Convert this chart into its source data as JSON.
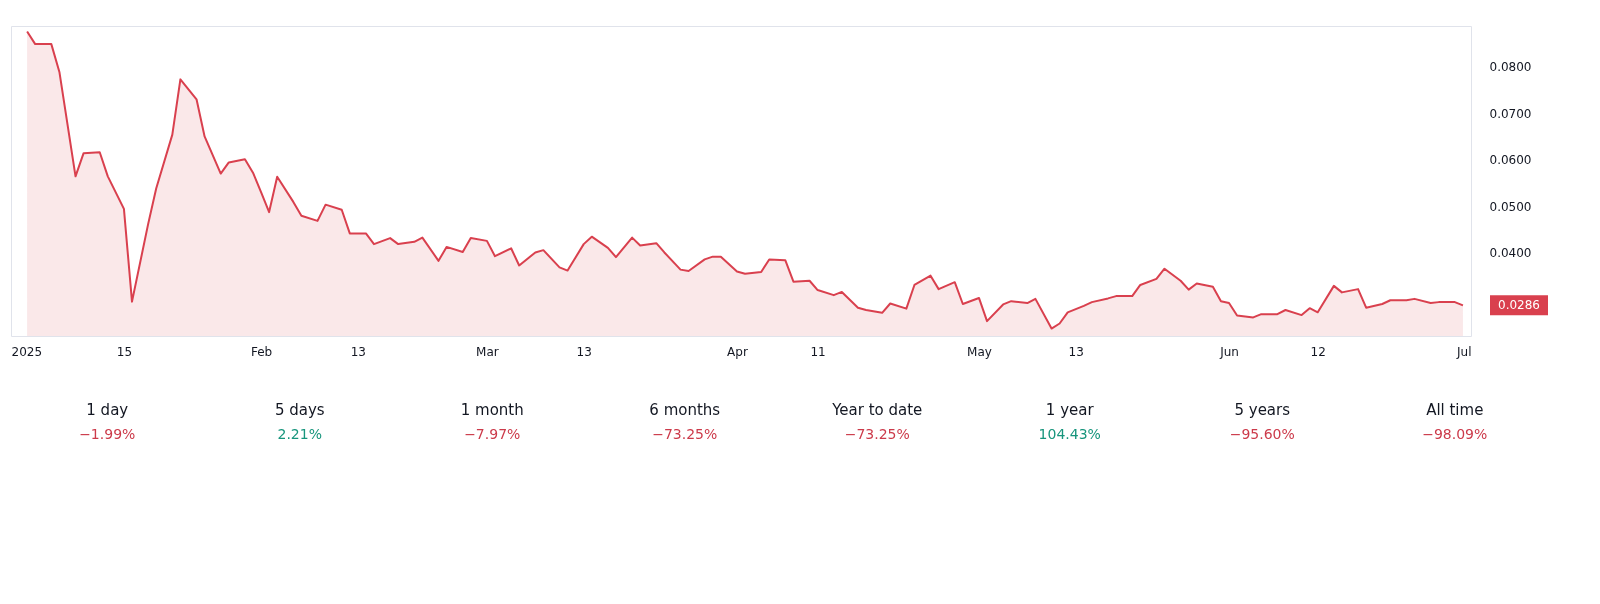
{
  "chart_data": [
    {
      "type": "area",
      "x": [
        "2025-01-03",
        "2025-01-04",
        "2025-01-06",
        "2025-01-07",
        "2025-01-09",
        "2025-01-10",
        "2025-01-12",
        "2025-01-13",
        "2025-01-15",
        "2025-01-16",
        "2025-01-18",
        "2025-01-19",
        "2025-01-21",
        "2025-01-22",
        "2025-01-24",
        "2025-01-25",
        "2025-01-27",
        "2025-01-28",
        "2025-01-30",
        "2025-01-31",
        "2025-02-01",
        "2025-02-02",
        "2025-02-03",
        "2025-02-05",
        "2025-02-06",
        "2025-02-08",
        "2025-02-09",
        "2025-02-11",
        "2025-02-12",
        "2025-02-14",
        "2025-02-15",
        "2025-02-17",
        "2025-02-18",
        "2025-02-20",
        "2025-02-21",
        "2025-02-23",
        "2025-02-24",
        "2025-02-26",
        "2025-02-27",
        "2025-03-01",
        "2025-03-02",
        "2025-03-04",
        "2025-03-05",
        "2025-03-07",
        "2025-03-08",
        "2025-03-10",
        "2025-03-11",
        "2025-03-13",
        "2025-03-14",
        "2025-03-16",
        "2025-03-17",
        "2025-03-19",
        "2025-03-20",
        "2025-03-22",
        "2025-03-23",
        "2025-03-25",
        "2025-03-26",
        "2025-03-28",
        "2025-03-29",
        "2025-03-30",
        "2025-04-01",
        "2025-04-02",
        "2025-04-04",
        "2025-04-05",
        "2025-04-07",
        "2025-04-08",
        "2025-04-10",
        "2025-04-11",
        "2025-04-13",
        "2025-04-14",
        "2025-04-16",
        "2025-04-17",
        "2025-04-19",
        "2025-04-20",
        "2025-04-22",
        "2025-04-23",
        "2025-04-25",
        "2025-04-26",
        "2025-04-28",
        "2025-04-29",
        "2025-05-01",
        "2025-05-02",
        "2025-05-04",
        "2025-05-05",
        "2025-05-07",
        "2025-05-08",
        "2025-05-10",
        "2025-05-11",
        "2025-05-12",
        "2025-05-14",
        "2025-05-15",
        "2025-05-17",
        "2025-05-18",
        "2025-05-20",
        "2025-05-21",
        "2025-05-23",
        "2025-05-24",
        "2025-05-26",
        "2025-05-27",
        "2025-05-28",
        "2025-05-30",
        "2025-05-31",
        "2025-06-01",
        "2025-06-02",
        "2025-06-04",
        "2025-06-05",
        "2025-06-07",
        "2025-06-08",
        "2025-06-10",
        "2025-06-11",
        "2025-06-12",
        "2025-06-14",
        "2025-06-15",
        "2025-06-17",
        "2025-06-18",
        "2025-06-20",
        "2025-06-21",
        "2025-06-23",
        "2025-06-24",
        "2025-06-26",
        "2025-06-27",
        "2025-06-29",
        "2025-06-30"
      ],
      "series": [
        {
          "color": "#d9404e",
          "values": [
            0.0876,
            0.0849,
            0.0849,
            0.0789,
            0.0564,
            0.0614,
            0.0616,
            0.0564,
            0.0494,
            0.0294,
            0.0461,
            0.0538,
            0.0654,
            0.0773,
            0.073,
            0.065,
            0.057,
            0.0594,
            0.0601,
            0.0572,
            0.053,
            0.0487,
            0.0563,
            0.0509,
            0.0479,
            0.0468,
            0.0503,
            0.0492,
            0.0441,
            0.0441,
            0.0418,
            0.0431,
            0.0418,
            0.0423,
            0.0432,
            0.0382,
            0.0412,
            0.0401,
            0.0431,
            0.0425,
            0.0392,
            0.0409,
            0.0372,
            0.04,
            0.0405,
            0.0368,
            0.0361,
            0.0418,
            0.0434,
            0.041,
            0.039,
            0.0432,
            0.0415,
            0.042,
            0.04,
            0.0363,
            0.036,
            0.0385,
            0.0391,
            0.0391,
            0.0359,
            0.0354,
            0.0358,
            0.0385,
            0.0383,
            0.0337,
            0.0339,
            0.0319,
            0.0308,
            0.0315,
            0.0281,
            0.0276,
            0.027,
            0.029,
            0.0279,
            0.033,
            0.035,
            0.0321,
            0.0336,
            0.0289,
            0.0302,
            0.0252,
            0.0288,
            0.0295,
            0.0291,
            0.03,
            0.0236,
            0.0247,
            0.0271,
            0.0285,
            0.0293,
            0.0301,
            0.0306,
            0.0306,
            0.033,
            0.0343,
            0.0365,
            0.0339,
            0.032,
            0.0333,
            0.0326,
            0.0295,
            0.0291,
            0.0264,
            0.026,
            0.0267,
            0.0267,
            0.0276,
            0.0265,
            0.028,
            0.0271,
            0.0328,
            0.0314,
            0.0321,
            0.0281,
            0.0289,
            0.0297,
            0.0297,
            0.03,
            0.0291,
            0.0293,
            0.0293,
            0.0286
          ]
        }
      ],
      "xlim": [
        "2025-01-01",
        "2025-07-01"
      ],
      "xticks": [
        {
          "value": "2025-01-01",
          "label": "2025"
        },
        {
          "value": "2025-01-15",
          "label": "15"
        },
        {
          "value": "2025-02-01",
          "label": "Feb"
        },
        {
          "value": "2025-02-13",
          "label": "13"
        },
        {
          "value": "2025-03-01",
          "label": "Mar"
        },
        {
          "value": "2025-03-13",
          "label": "13"
        },
        {
          "value": "2025-04-01",
          "label": "Apr"
        },
        {
          "value": "2025-04-11",
          "label": "11"
        },
        {
          "value": "2025-05-01",
          "label": "May"
        },
        {
          "value": "2025-05-13",
          "label": "13"
        },
        {
          "value": "2025-06-01",
          "label": "Jun"
        },
        {
          "value": "2025-06-12",
          "label": "12"
        },
        {
          "value": "2025-07-01",
          "label": "Jul"
        }
      ],
      "ylim": [
        0.022,
        0.0888
      ],
      "yticks": [
        {
          "value": 0.04,
          "label": "0.0400"
        },
        {
          "value": 0.05,
          "label": "0.0500"
        },
        {
          "value": 0.06,
          "label": "0.0600"
        },
        {
          "value": 0.07,
          "label": "0.0700"
        },
        {
          "value": 0.08,
          "label": "0.0800"
        }
      ],
      "annotations": [
        "0.0286"
      ],
      "grid": false
    },
    {
      "type": "other",
      "categories": [
        "1 day",
        "5 days",
        "1 month",
        "6 months",
        "Year to date",
        "1 year",
        "5 years",
        "All time"
      ],
      "value_labels": [
        "−1.99%",
        "2.21%",
        "−7.97%",
        "−73.25%",
        "−73.25%",
        "104.43%",
        "−95.60%",
        "−98.09%"
      ],
      "colors": [
        "#cc3a4a",
        "#16957c",
        "#cc3a4a",
        "#cc3a4a",
        "#cc3a4a",
        "#16957c",
        "#cc3a4a",
        "#cc3a4a"
      ]
    }
  ]
}
